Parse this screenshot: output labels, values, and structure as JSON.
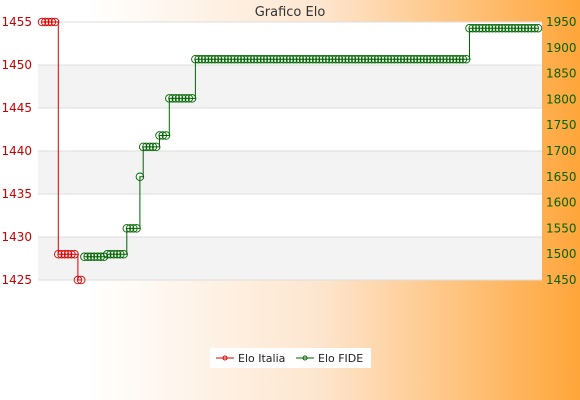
{
  "chart_data": {
    "type": "line",
    "title": "Grafico Elo",
    "legend_position": "bottom",
    "grid": true,
    "x_tick_count": 90,
    "x_tick_labels_note": "dense rotated date labels, illegible",
    "left_axis": {
      "ylim": [
        1425,
        1455
      ],
      "ticks": [
        1425,
        1430,
        1435,
        1440,
        1445,
        1450,
        1455
      ],
      "color": "#cc0000"
    },
    "right_axis": {
      "ylim": [
        1450,
        1950
      ],
      "ticks": [
        1450,
        1500,
        1550,
        1600,
        1650,
        1700,
        1750,
        1800,
        1850,
        1900,
        1950
      ],
      "color": "#006600"
    },
    "series": [
      {
        "name": "Elo Italia",
        "color": "#dd0000",
        "axis": "left",
        "points": [
          [
            0,
            1455
          ],
          [
            1,
            1455
          ],
          [
            2,
            1455
          ],
          [
            3,
            1455
          ],
          [
            4,
            1455
          ],
          [
            5,
            1428
          ],
          [
            6,
            1428
          ],
          [
            7,
            1428
          ],
          [
            8,
            1428
          ],
          [
            9,
            1428
          ],
          [
            10,
            1428
          ],
          [
            11,
            1425
          ],
          [
            12,
            1425
          ]
        ]
      },
      {
        "name": "Elo FIDE",
        "color": "#006600",
        "axis": "right",
        "points": [
          [
            13,
            1495
          ],
          [
            14,
            1495
          ],
          [
            15,
            1495
          ],
          [
            16,
            1495
          ],
          [
            17,
            1495
          ],
          [
            18,
            1495
          ],
          [
            19,
            1495
          ],
          [
            20,
            1500
          ],
          [
            21,
            1500
          ],
          [
            22,
            1500
          ],
          [
            23,
            1500
          ],
          [
            24,
            1500
          ],
          [
            25,
            1500
          ],
          [
            26,
            1550
          ],
          [
            27,
            1550
          ],
          [
            28,
            1550
          ],
          [
            29,
            1550
          ],
          [
            30,
            1650
          ],
          [
            31,
            1708
          ],
          [
            32,
            1708
          ],
          [
            33,
            1708
          ],
          [
            34,
            1708
          ],
          [
            35,
            1708
          ],
          [
            36,
            1730
          ],
          [
            37,
            1730
          ],
          [
            38,
            1730
          ],
          [
            39,
            1802
          ],
          [
            40,
            1802
          ],
          [
            41,
            1802
          ],
          [
            42,
            1802
          ],
          [
            43,
            1802
          ],
          [
            44,
            1802
          ],
          [
            45,
            1802
          ],
          [
            46,
            1802
          ],
          [
            47,
            1878
          ],
          [
            48,
            1878
          ],
          [
            49,
            1878
          ],
          [
            50,
            1878
          ],
          [
            51,
            1878
          ],
          [
            52,
            1878
          ],
          [
            53,
            1878
          ],
          [
            54,
            1878
          ],
          [
            55,
            1878
          ],
          [
            56,
            1878
          ],
          [
            57,
            1878
          ],
          [
            58,
            1878
          ],
          [
            59,
            1878
          ],
          [
            60,
            1878
          ],
          [
            61,
            1878
          ],
          [
            62,
            1878
          ],
          [
            63,
            1878
          ],
          [
            64,
            1878
          ],
          [
            65,
            1878
          ],
          [
            66,
            1878
          ],
          [
            67,
            1878
          ],
          [
            68,
            1878
          ],
          [
            69,
            1878
          ],
          [
            70,
            1878
          ],
          [
            71,
            1878
          ],
          [
            72,
            1878
          ],
          [
            73,
            1878
          ],
          [
            74,
            1878
          ],
          [
            75,
            1878
          ],
          [
            76,
            1878
          ],
          [
            77,
            1878
          ],
          [
            78,
            1878
          ],
          [
            79,
            1878
          ],
          [
            80,
            1878
          ],
          [
            81,
            1878
          ],
          [
            82,
            1878
          ],
          [
            83,
            1878
          ],
          [
            84,
            1878
          ],
          [
            85,
            1878
          ],
          [
            86,
            1878
          ],
          [
            87,
            1878
          ],
          [
            88,
            1878
          ],
          [
            89,
            1878
          ],
          [
            90,
            1878
          ],
          [
            91,
            1878
          ],
          [
            92,
            1878
          ],
          [
            93,
            1878
          ],
          [
            94,
            1878
          ],
          [
            95,
            1878
          ],
          [
            96,
            1878
          ],
          [
            97,
            1878
          ],
          [
            98,
            1878
          ],
          [
            99,
            1878
          ],
          [
            100,
            1878
          ],
          [
            101,
            1878
          ],
          [
            102,
            1878
          ],
          [
            103,
            1878
          ],
          [
            104,
            1878
          ],
          [
            105,
            1878
          ],
          [
            106,
            1878
          ],
          [
            107,
            1878
          ],
          [
            108,
            1878
          ],
          [
            109,
            1878
          ],
          [
            110,
            1878
          ],
          [
            111,
            1878
          ],
          [
            112,
            1878
          ],
          [
            113,
            1878
          ],
          [
            114,
            1878
          ],
          [
            115,
            1878
          ],
          [
            116,
            1878
          ],
          [
            117,
            1878
          ],
          [
            118,
            1878
          ],
          [
            119,
            1878
          ],
          [
            120,
            1878
          ],
          [
            121,
            1878
          ],
          [
            122,
            1878
          ],
          [
            123,
            1878
          ],
          [
            124,
            1878
          ],
          [
            125,
            1878
          ],
          [
            126,
            1878
          ],
          [
            127,
            1878
          ],
          [
            128,
            1878
          ],
          [
            129,
            1878
          ],
          [
            130,
            1878
          ],
          [
            131,
            1938
          ],
          [
            132,
            1938
          ],
          [
            133,
            1938
          ],
          [
            134,
            1938
          ],
          [
            135,
            1938
          ],
          [
            136,
            1938
          ],
          [
            137,
            1938
          ],
          [
            138,
            1938
          ],
          [
            139,
            1938
          ],
          [
            140,
            1938
          ],
          [
            141,
            1938
          ],
          [
            142,
            1938
          ],
          [
            143,
            1938
          ],
          [
            144,
            1938
          ],
          [
            145,
            1938
          ],
          [
            146,
            1938
          ],
          [
            147,
            1938
          ],
          [
            148,
            1938
          ],
          [
            149,
            1938
          ],
          [
            150,
            1938
          ],
          [
            151,
            1938
          ],
          [
            152,
            1938
          ]
        ]
      }
    ]
  }
}
